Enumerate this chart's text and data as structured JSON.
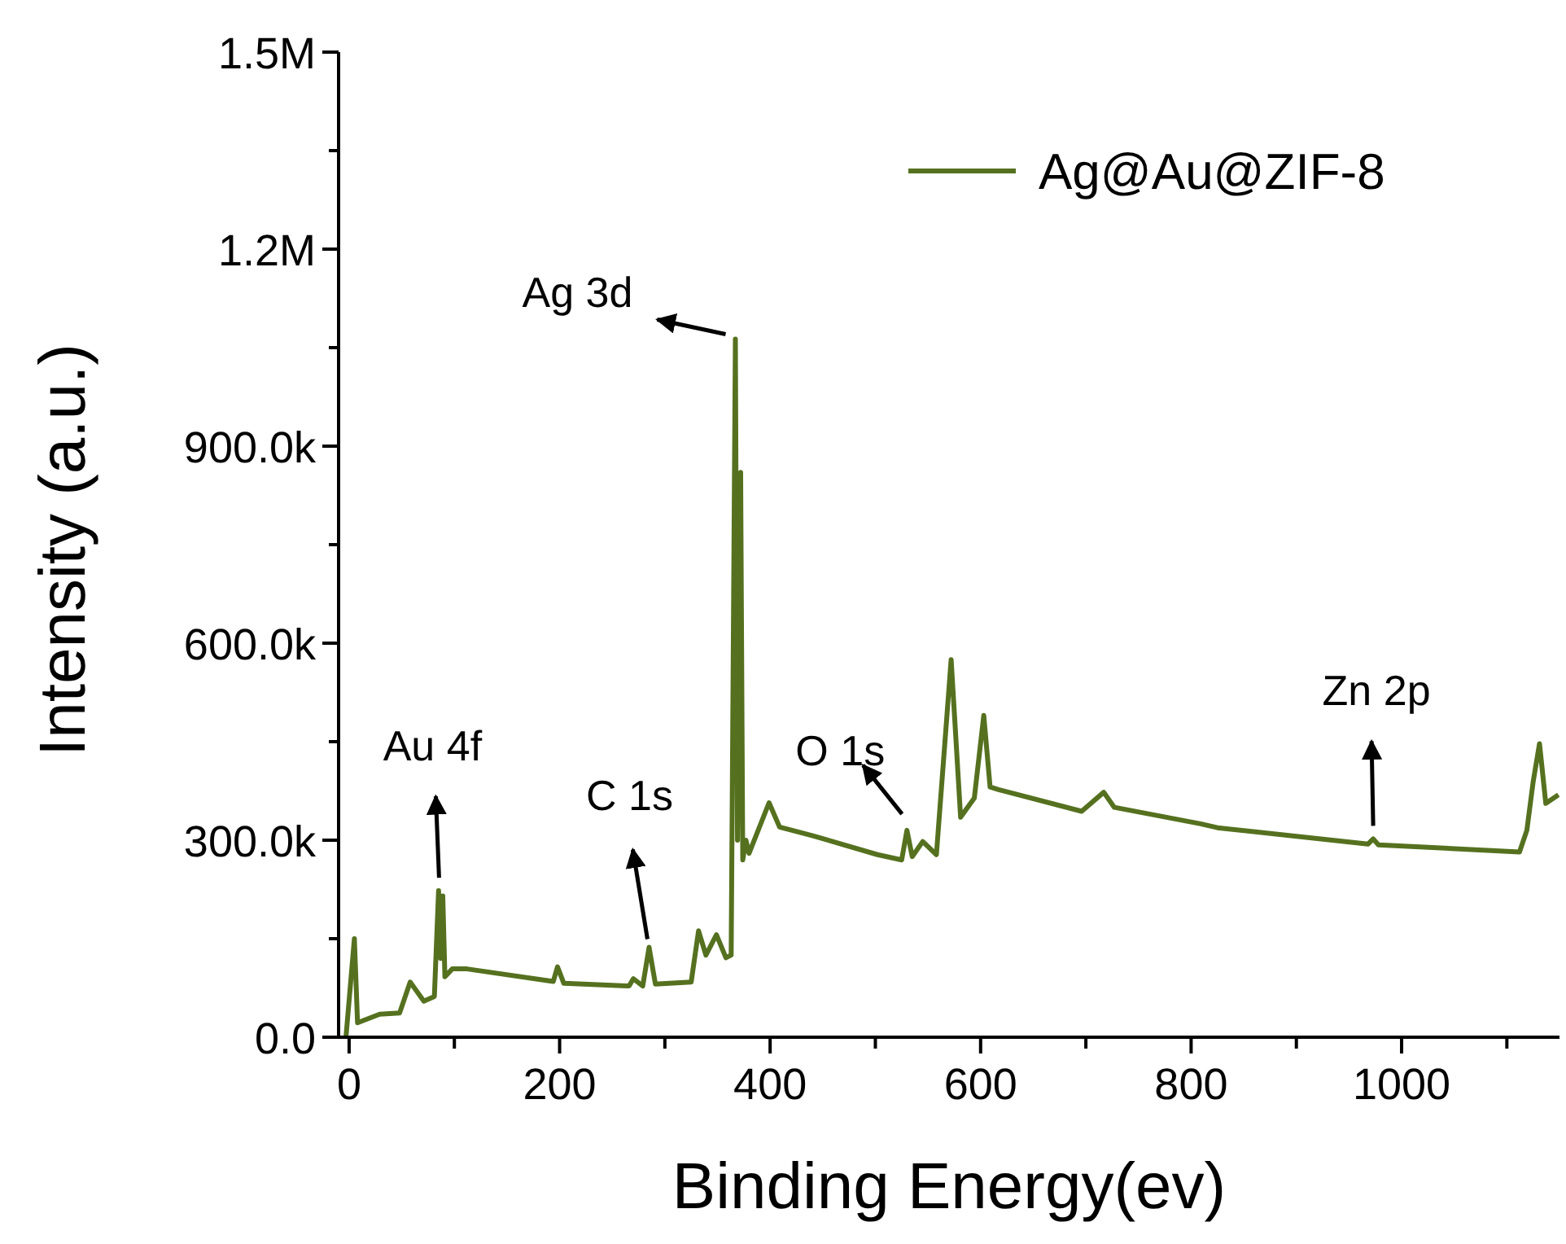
{
  "chart_data": {
    "type": "line",
    "xlabel": "Binding Energy(ev)",
    "ylabel": "Intensity (a.u.)",
    "x": [
      -3,
      5,
      8,
      29,
      48,
      58,
      71,
      81,
      85,
      87,
      89,
      91,
      98,
      112,
      194,
      198,
      204,
      266,
      270,
      279,
      285,
      291,
      325,
      332,
      339,
      349,
      358,
      363,
      367,
      369,
      372,
      374,
      377,
      380,
      399,
      409,
      440,
      502,
      525,
      530,
      535,
      545,
      558,
      572,
      581,
      594,
      603,
      609,
      617,
      696,
      717,
      727,
      809,
      825,
      968,
      973,
      978,
      1112,
      1119,
      1125,
      1131,
      1137,
      1149
    ],
    "series": [
      {
        "name": "Ag@Au@ZIF-8",
        "color": "#55711f",
        "values": [
          0,
          150000,
          22000,
          35000,
          37000,
          84000,
          55000,
          62000,
          223000,
          120000,
          215000,
          92000,
          104000,
          104000,
          85000,
          107000,
          82000,
          78000,
          89000,
          78000,
          137000,
          81000,
          84000,
          162000,
          125000,
          156000,
          121000,
          125000,
          1063000,
          300000,
          860000,
          270000,
          300000,
          280000,
          357000,
          320000,
          307000,
          278000,
          270000,
          315000,
          275000,
          298000,
          278000,
          575000,
          335000,
          364000,
          490000,
          381000,
          377000,
          344000,
          373000,
          350000,
          325000,
          319000,
          294000,
          302000,
          293000,
          282000,
          315000,
          389000,
          447000,
          356000,
          369000
        ]
      }
    ],
    "xlim": [
      -10,
      1150
    ],
    "xticks": [
      0,
      {
        "value": 100,
        "label": null
      },
      200,
      {
        "value": 300,
        "label": null
      },
      400,
      {
        "value": 500,
        "label": null
      },
      600,
      {
        "value": 700,
        "label": null
      },
      800,
      {
        "value": 900,
        "label": null
      },
      1000,
      {
        "value": 1100,
        "label": null
      }
    ],
    "ylim": [
      0,
      1500000
    ],
    "yticks": [
      {
        "value": 0,
        "label": "0.0"
      },
      {
        "value": 150000,
        "label": null
      },
      {
        "value": 300000,
        "label": "300.0k"
      },
      {
        "value": 450000,
        "label": null
      },
      {
        "value": 600000,
        "label": "600.0k"
      },
      {
        "value": 750000,
        "label": null
      },
      {
        "value": 900000,
        "label": "900.0k"
      },
      {
        "value": 1050000,
        "label": null
      },
      {
        "value": 1200000,
        "label": "1.2M"
      },
      {
        "value": 1350000,
        "label": null
      },
      {
        "value": 1500000,
        "label": "1.5M"
      }
    ],
    "annotations": [
      {
        "text": "Au 4f",
        "x": 87,
        "y": 223000
      },
      {
        "text": "C 1s",
        "x": 285,
        "y": 137000
      },
      {
        "text": "Ag 3d",
        "x": 367,
        "y": 1063000
      },
      {
        "text": "O 1s",
        "x": 530,
        "y": 315000
      },
      {
        "text": "Zn 2p",
        "x": 973,
        "y": 302000
      }
    ],
    "legend": "top right",
    "grid": false,
    "marker": "none",
    "line_style": "solid"
  }
}
